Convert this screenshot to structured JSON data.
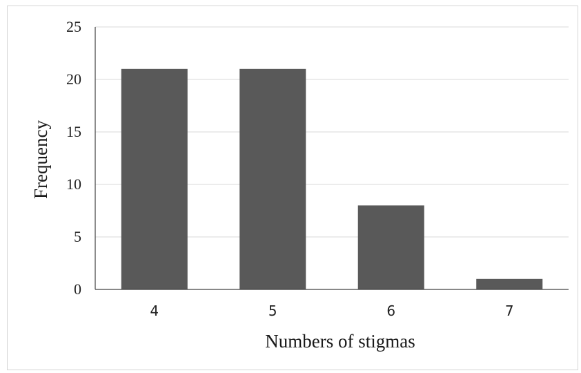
{
  "chart_data": {
    "type": "bar",
    "categories": [
      "4",
      "5",
      "6",
      "7"
    ],
    "values": [
      21,
      21,
      8,
      1
    ],
    "title": "",
    "xlabel": "Numbers of stigmas",
    "ylabel": "Frequency",
    "ylim": [
      0,
      25
    ],
    "yticks": [
      "0",
      "5",
      "10",
      "15",
      "20",
      "25"
    ],
    "grid": true,
    "legend": "none",
    "colors": {
      "bar": "#595959",
      "grid": "#d9d9d9",
      "axis": "#404040"
    }
  }
}
